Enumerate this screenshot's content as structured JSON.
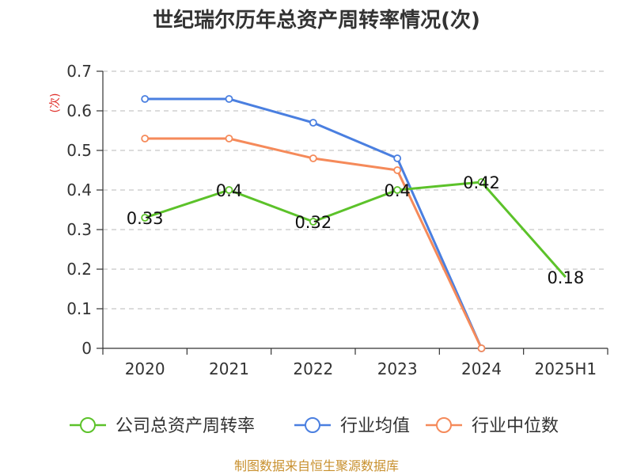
{
  "title": "世纪瑞尔历年总资产周转率情况(次)",
  "unit_label": "(次)",
  "source": "制图数据来自恒生聚源数据库",
  "colors": {
    "company": "#5cc22a",
    "industry_avg": "#4a7fe0",
    "industry_median": "#f58a5a",
    "grid": "#c8c8c8",
    "axis": "#333333"
  },
  "chart_data": {
    "type": "line",
    "title": "世纪瑞尔历年总资产周转率情况(次)",
    "ylabel": "(次)",
    "categories": [
      "2020",
      "2021",
      "2022",
      "2023",
      "2024",
      "2025H1"
    ],
    "ylim": [
      0,
      0.7
    ],
    "yticks": [
      "0",
      "0.1",
      "0.2",
      "0.3",
      "0.4",
      "0.5",
      "0.6",
      "0.7"
    ],
    "grid": true,
    "legend_position": "bottom",
    "series": [
      {
        "name": "公司总资产周转率",
        "color": "#5cc22a",
        "values": [
          0.33,
          0.4,
          0.32,
          0.4,
          0.42,
          0.18
        ],
        "labels": [
          "0.33",
          "0.4",
          "0.32",
          "0.4",
          "0.42",
          "0.18"
        ],
        "markers": [
          true,
          true,
          true,
          true,
          true,
          false
        ]
      },
      {
        "name": "行业均值",
        "color": "#4a7fe0",
        "values": [
          0.63,
          0.63,
          0.57,
          0.48,
          0,
          null
        ],
        "markers": [
          true,
          true,
          true,
          true,
          true,
          false
        ]
      },
      {
        "name": "行业中位数",
        "color": "#f58a5a",
        "values": [
          0.53,
          0.53,
          0.48,
          0.45,
          0,
          null
        ],
        "markers": [
          true,
          true,
          true,
          true,
          true,
          false
        ]
      }
    ]
  }
}
